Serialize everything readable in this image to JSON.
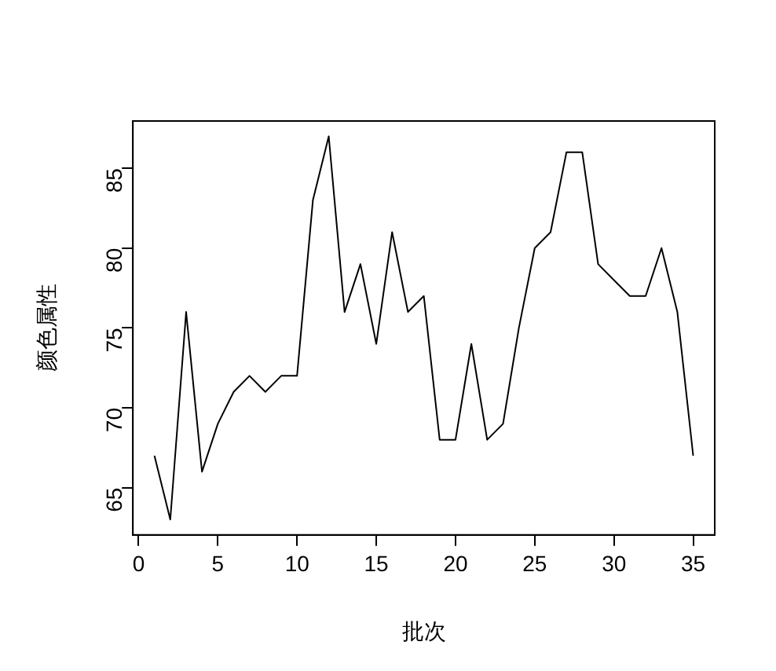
{
  "chart_data": {
    "type": "line",
    "xlabel": "批次",
    "ylabel": "颜色属性",
    "x": [
      1,
      2,
      3,
      4,
      5,
      6,
      7,
      8,
      9,
      10,
      11,
      12,
      13,
      14,
      15,
      16,
      17,
      18,
      19,
      20,
      21,
      22,
      23,
      24,
      25,
      26,
      27,
      28,
      29,
      30,
      31,
      32,
      33,
      34,
      35
    ],
    "series": [
      {
        "color": "#000000",
        "values": [
          67,
          63,
          76,
          66,
          69,
          71,
          72,
          71,
          72,
          72,
          83,
          87,
          76,
          79,
          74,
          81,
          76,
          77,
          68,
          68,
          74,
          68,
          69,
          75,
          80,
          81,
          86,
          86,
          79,
          78,
          77,
          77,
          80,
          76,
          67
        ]
      }
    ],
    "xlim": [
      -0.36,
      36.36
    ],
    "xticks": [
      0,
      5,
      10,
      15,
      20,
      25,
      30,
      35
    ],
    "ylim": [
      62.04,
      87.96
    ],
    "yticks": [
      65,
      70,
      75,
      80,
      85
    ],
    "grid": false,
    "legend": false,
    "marker": "none",
    "line_style": "solid"
  }
}
